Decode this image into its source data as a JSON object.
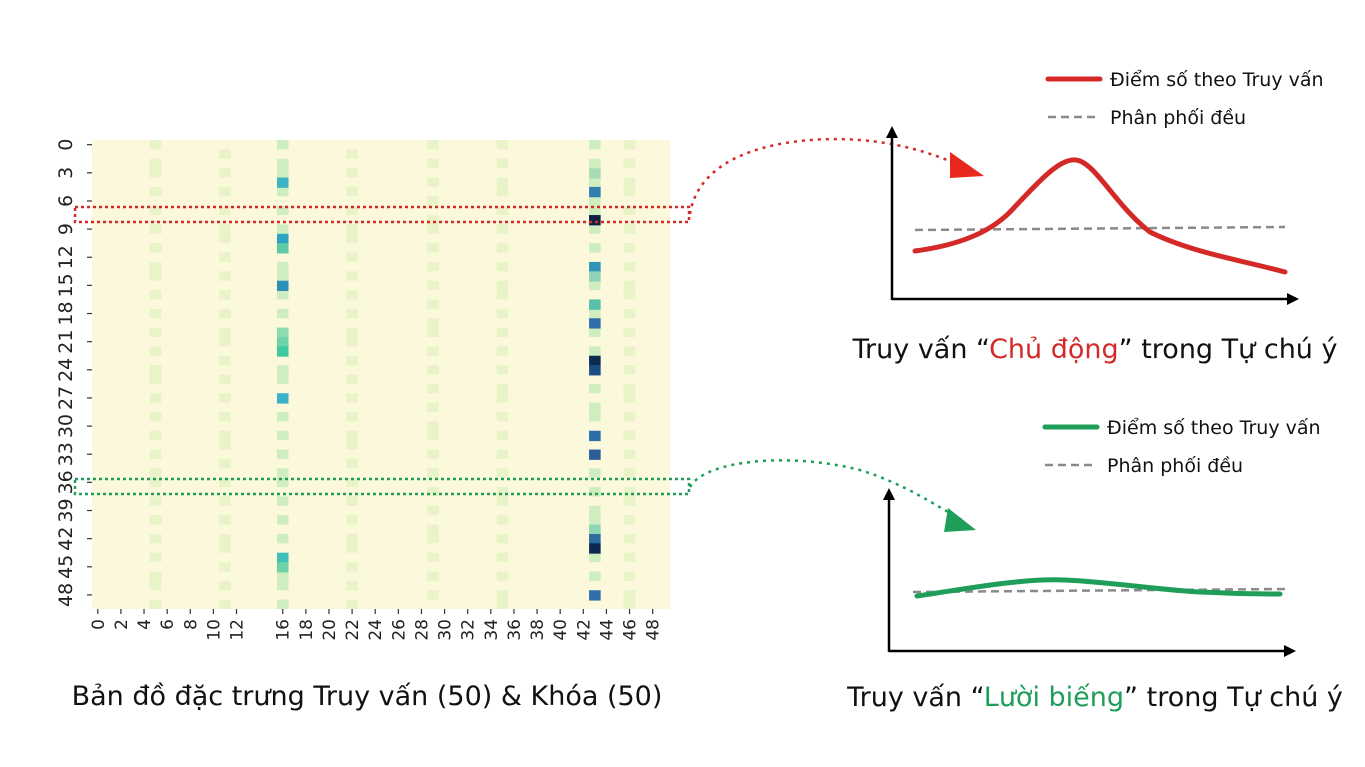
{
  "heatmap": {
    "caption": "Bản đồ đặc trưng Truy vấn (50) & Khóa (50)",
    "y_ticks": [
      "0",
      "3",
      "6",
      "9",
      "12",
      "15",
      "18",
      "21",
      "24",
      "27",
      "30",
      "33",
      "36",
      "39",
      "42",
      "45",
      "48"
    ],
    "x_ticks": [
      "0",
      "2",
      "4",
      "6",
      "8",
      "10",
      "12",
      "16",
      "18",
      "20",
      "22",
      "24",
      "26",
      "28",
      "30",
      "32",
      "34",
      "36",
      "38",
      "40",
      "42",
      "44",
      "46",
      "48"
    ],
    "highlighted_rows": {
      "active_row": 8,
      "lazy_row": 35
    },
    "background_color": "#fbf8dc",
    "light_columns": [
      5,
      11,
      16,
      22,
      29,
      35,
      43,
      46
    ],
    "strong_cells": [
      {
        "col": 16,
        "row": 4,
        "color": "#3fb1c5"
      },
      {
        "col": 16,
        "row": 10,
        "color": "#2fa4c2"
      },
      {
        "col": 16,
        "row": 11,
        "color": "#5fcaa6"
      },
      {
        "col": 16,
        "row": 15,
        "color": "#2c8fb8"
      },
      {
        "col": 16,
        "row": 20,
        "color": "#8fdbb0"
      },
      {
        "col": 16,
        "row": 21,
        "color": "#6fd3a8"
      },
      {
        "col": 16,
        "row": 22,
        "color": "#3fc9a0"
      },
      {
        "col": 16,
        "row": 27,
        "color": "#3cb1c8"
      },
      {
        "col": 16,
        "row": 44,
        "color": "#3fbfb8"
      },
      {
        "col": 16,
        "row": 45,
        "color": "#6fd1a6"
      },
      {
        "col": 43,
        "row": 3,
        "color": "#a6dcb4"
      },
      {
        "col": 43,
        "row": 5,
        "color": "#2f7fb0"
      },
      {
        "col": 43,
        "row": 8,
        "color": "#0c1f45"
      },
      {
        "col": 43,
        "row": 13,
        "color": "#2f96b8"
      },
      {
        "col": 43,
        "row": 14,
        "color": "#8fd4b8"
      },
      {
        "col": 43,
        "row": 17,
        "color": "#56c0a8"
      },
      {
        "col": 43,
        "row": 19,
        "color": "#2f6ea8"
      },
      {
        "col": 43,
        "row": 23,
        "color": "#0c2a50"
      },
      {
        "col": 43,
        "row": 24,
        "color": "#1d4d80"
      },
      {
        "col": 43,
        "row": 31,
        "color": "#2c6ea6"
      },
      {
        "col": 43,
        "row": 33,
        "color": "#2c5f98"
      },
      {
        "col": 43,
        "row": 41,
        "color": "#8fd6b4"
      },
      {
        "col": 43,
        "row": 42,
        "color": "#2d6ca0"
      },
      {
        "col": 43,
        "row": 43,
        "color": "#0c2a50"
      },
      {
        "col": 43,
        "row": 48,
        "color": "#2f6ea8"
      }
    ]
  },
  "top_chart": {
    "legend_series": "Điểm số theo Truy vấn",
    "legend_uniform": "Phân phối đều",
    "series_color": "#d42a27",
    "uniform_color": "#8a8a8a",
    "title_prefix": "Truy vấn “",
    "title_highlight": "Chủ động",
    "title_suffix": "” trong Tự chú ý"
  },
  "bottom_chart": {
    "legend_series": "Điểm số theo Truy vấn",
    "legend_uniform": "Phân phối đều",
    "series_color": "#1f9e5a",
    "uniform_color": "#8a8a8a",
    "title_prefix": "Truy vấn “",
    "title_highlight": "Lười biếng",
    "title_suffix": "” trong Tự chú ý"
  }
}
